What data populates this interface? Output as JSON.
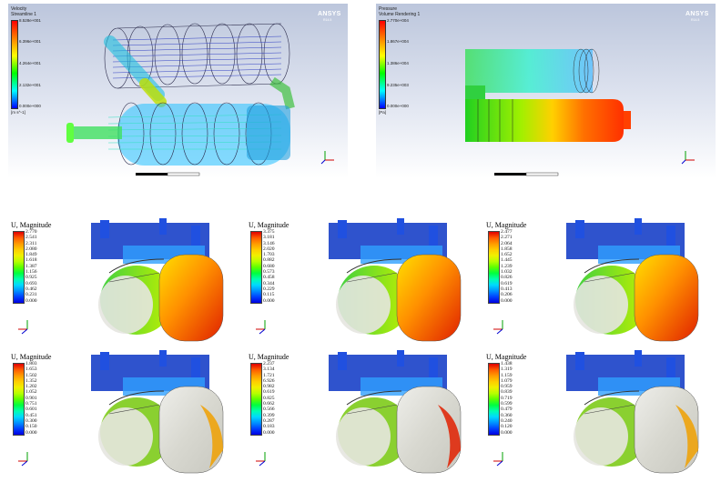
{
  "top_panels": [
    {
      "legend_title": [
        "Velocity",
        "Streamline 1"
      ],
      "ticks": [
        "8.528e+001",
        "6.396e+001",
        "4.264e+001",
        "2.132e+001",
        "0.000e+000"
      ],
      "unit": "[m s^-1]",
      "logo": "ANSYS",
      "version": "R14.5"
    },
    {
      "legend_title": [
        "Pressure",
        "Volume Rendering 1"
      ],
      "ticks": [
        "2.770e+004",
        "1.867e+004",
        "1.386e+004",
        "9.235e+003",
        "0.000e+000"
      ],
      "unit": "[Pa]",
      "logo": "ANSYS",
      "version": "R14.5"
    }
  ],
  "fea_panels": [
    {
      "title": "U, Magnitude",
      "ticks": [
        "2.770",
        "2.541",
        "2.311",
        "2.080",
        "1.849",
        "1.618",
        "1.387",
        "1.156",
        "0.925",
        "0.693",
        "0.462",
        "0.231",
        "0.000"
      ]
    },
    {
      "title": "U, Magnitude",
      "ticks": [
        "3.375",
        "3.181",
        "3.146",
        "2.020",
        "1.703",
        "0.882",
        "0.680",
        "0.573",
        "0.458",
        "0.344",
        "0.229",
        "0.115",
        "0.000"
      ]
    },
    {
      "title": "U, Magnitude",
      "ticks": [
        "2.477",
        "2.271",
        "2.064",
        "1.858",
        "1.652",
        "1.445",
        "1.239",
        "1.032",
        "0.826",
        "0.619",
        "0.413",
        "0.206",
        "0.000"
      ]
    },
    {
      "title": "U, Magnitude",
      "ticks": [
        "1.803",
        "1.653",
        "1.502",
        "1.352",
        "1.202",
        "1.052",
        "0.901",
        "0.751",
        "0.601",
        "0.451",
        "0.300",
        "0.150",
        "0.000"
      ]
    },
    {
      "title": "U, Magnitude",
      "ticks": [
        "2.237",
        "3.134",
        "1.721",
        "6.926",
        "0.982",
        "0.619",
        "0.825",
        "0.662",
        "0.566",
        "0.399",
        "0.287",
        "0.183",
        "0.000"
      ]
    },
    {
      "title": "U, Magnitude",
      "ticks": [
        "1.438",
        "1.319",
        "1.159",
        "1.079",
        "0.959",
        "0.839",
        "0.719",
        "0.599",
        "0.479",
        "0.360",
        "0.240",
        "0.120",
        "0.000"
      ]
    }
  ],
  "colors": {
    "rainbow": [
      "#ff0000",
      "#ff8000",
      "#ffff00",
      "#00ff00",
      "#00ffff",
      "#0000ff"
    ],
    "fea_rainbow": [
      "#e00000",
      "#ff5a00",
      "#ff9a00",
      "#ffcc00",
      "#f0f000",
      "#b8ff00",
      "#5cff00",
      "#00ff40",
      "#00ffb0",
      "#00d8ff",
      "#0090ff",
      "#0040ff",
      "#0000e0"
    ],
    "background": "#ffffff"
  }
}
